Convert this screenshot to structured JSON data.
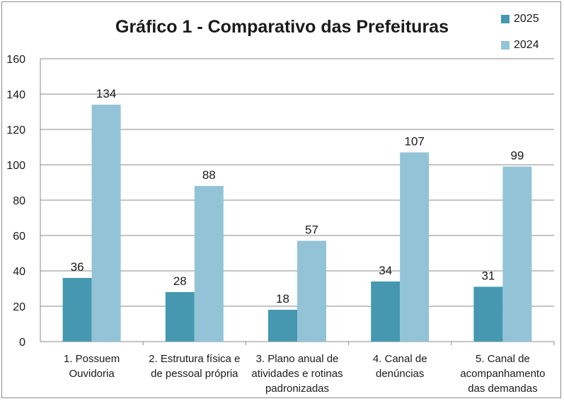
{
  "chart_data": {
    "type": "bar",
    "title": "Gráfico 1 - Comparativo das Prefeituras",
    "xlabel": "",
    "ylabel": "",
    "ylim": [
      0,
      160
    ],
    "yticks": [
      0,
      20,
      40,
      60,
      80,
      100,
      120,
      140,
      160
    ],
    "grid": true,
    "legend_position": "top-right",
    "categories": [
      [
        "1. Possuem",
        "Ouvidoria"
      ],
      [
        "2. Estrutura física e",
        "de pessoal própria"
      ],
      [
        "3. Plano anual de",
        "atividades e rotinas",
        "padronizadas"
      ],
      [
        "4. Canal de",
        "denúncias"
      ],
      [
        "5. Canal de",
        "acompanhamento",
        "das demandas"
      ]
    ],
    "series": [
      {
        "name": "2025",
        "color": "#4598b0",
        "values": [
          36,
          28,
          18,
          34,
          31
        ]
      },
      {
        "name": "2024",
        "color": "#93c3d6",
        "values": [
          134,
          88,
          57,
          107,
          99
        ]
      }
    ]
  }
}
